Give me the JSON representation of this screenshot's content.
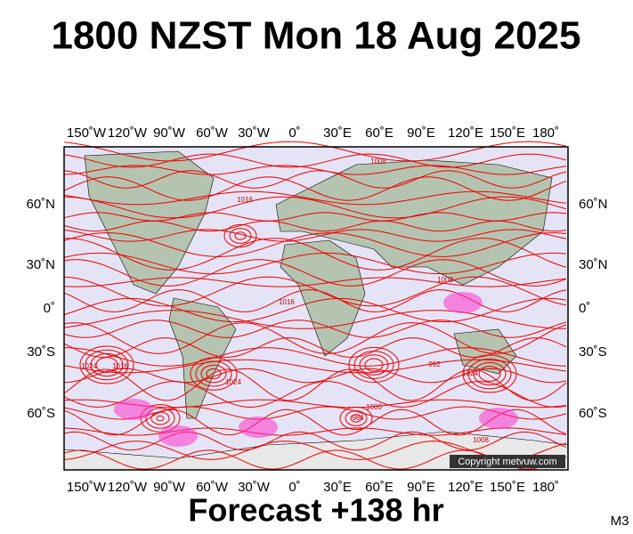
{
  "header": {
    "title": "1800 NZST Mon 18 Aug 2025"
  },
  "map": {
    "lon_labels": [
      "150˚W",
      "120˚W",
      "90˚W",
      "60˚W",
      "30˚W",
      "0˚",
      "30˚E",
      "60˚E",
      "90˚E",
      "120˚E",
      "150˚E",
      "180˚"
    ],
    "lat_labels": [
      "60˚N",
      "30˚N",
      "0˚",
      "30˚S",
      "60˚S"
    ],
    "isobar_labels": [
      1016,
      1008,
      1024,
      1016,
      1024,
      1000,
      984,
      1008,
      1016,
      1008,
      1024,
      992
    ],
    "copyright": "Copyright metvuw.com"
  },
  "footer": {
    "forecast": "Forecast +138 hr",
    "code": "M3"
  }
}
